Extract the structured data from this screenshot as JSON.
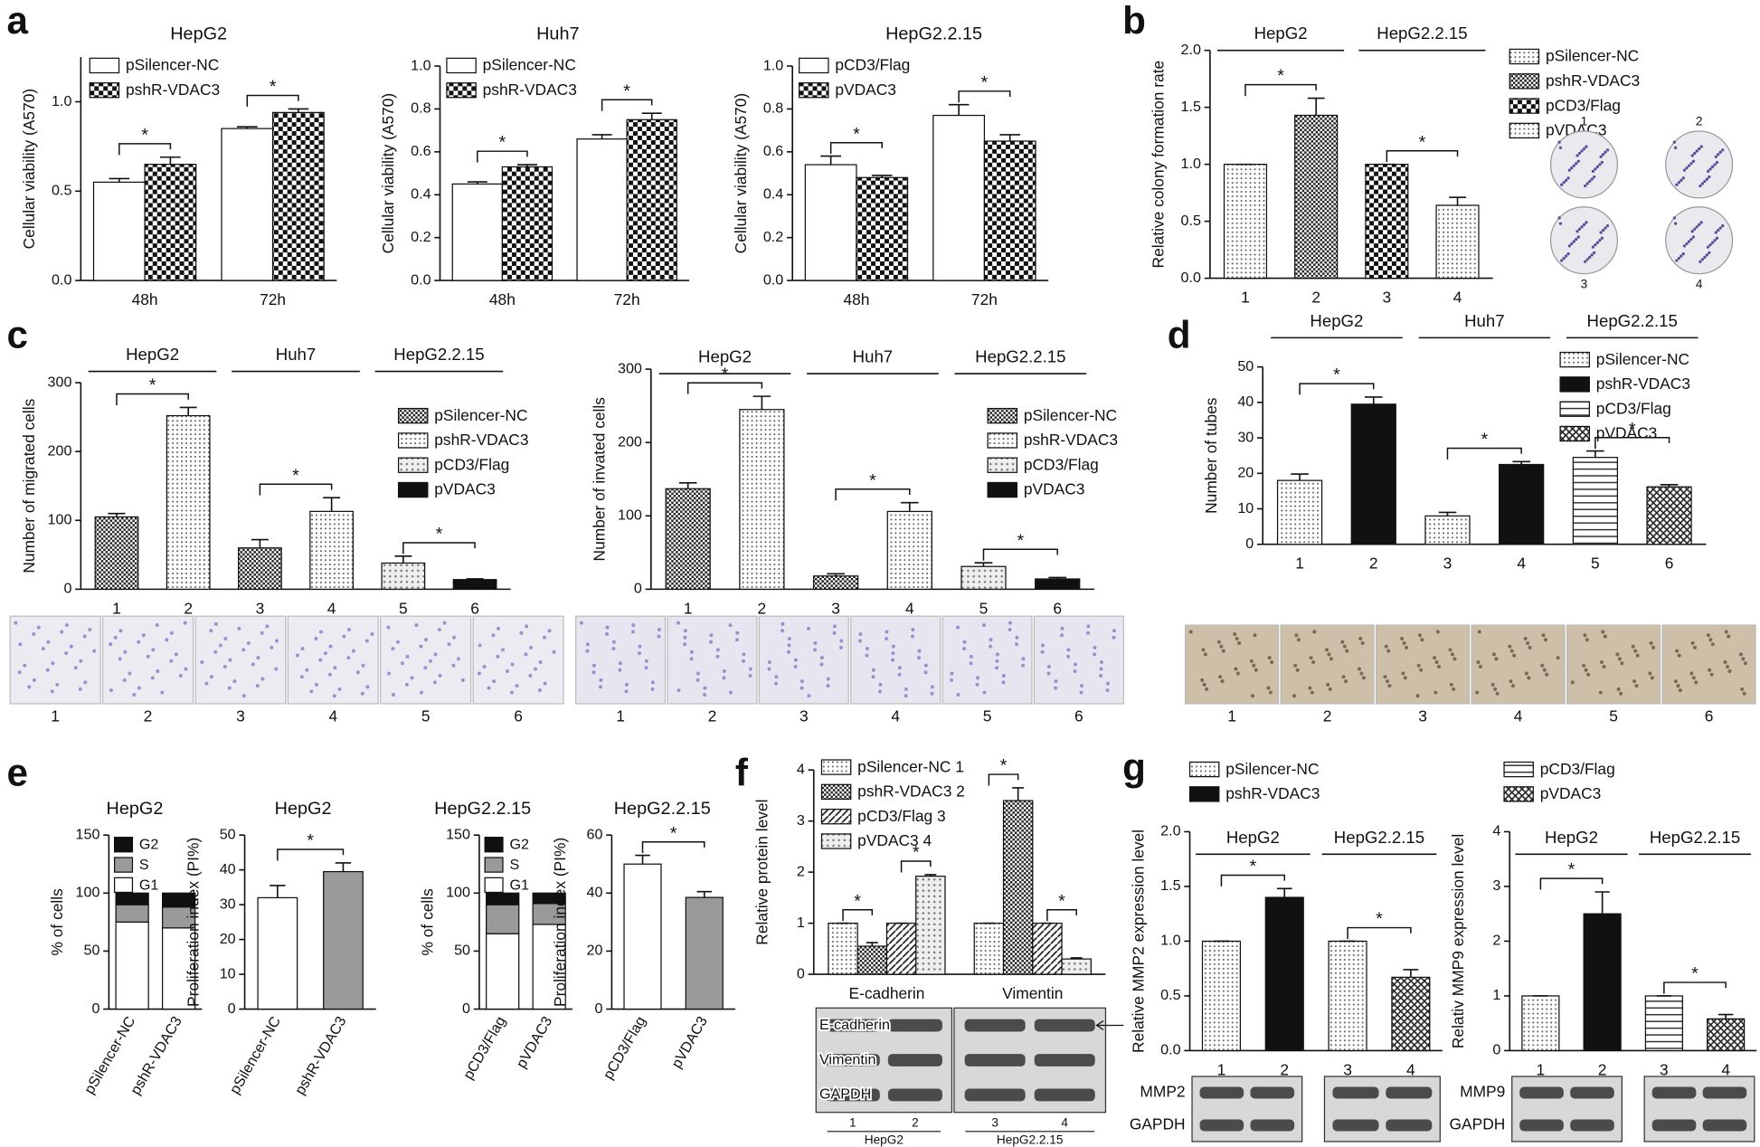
{
  "chart_data": [
    {
      "type": "bar",
      "panel": "a",
      "title": "HepG2",
      "ylabel": "Cellular viability (A570)",
      "categories": [
        "48h",
        "72h"
      ],
      "series": [
        {
          "name": "pSilencer-NC",
          "fill": "white",
          "values": [
            0.55,
            0.85
          ],
          "errors": [
            0.02,
            0.01
          ]
        },
        {
          "name": "pshR-VDAC3",
          "fill": "checker",
          "values": [
            0.65,
            0.94
          ],
          "errors": [
            0.04,
            0.02
          ]
        }
      ],
      "ylim": [
        0,
        1.25
      ],
      "yticks": [
        {
          "value": 0,
          "label": "0.0"
        },
        {
          "value": 0.5,
          "label": "0.5"
        },
        {
          "value": 1,
          "label": "1.0"
        }
      ],
      "annotations": [
        "*",
        "*"
      ]
    },
    {
      "type": "bar",
      "title": "Huh7",
      "ylabel": "Cellular viability (A570)",
      "categories": [
        "48h",
        "72h"
      ],
      "series": [
        {
          "name": "pSilencer-NC",
          "fill": "white",
          "values": [
            0.45,
            0.66
          ],
          "errors": [
            0.01,
            0.02
          ]
        },
        {
          "name": "pshR-VDAC3",
          "fill": "checker",
          "values": [
            0.53,
            0.75
          ],
          "errors": [
            0.01,
            0.03
          ]
        }
      ],
      "ylim": [
        0,
        1.0
      ],
      "yticks": [
        {
          "value": 0,
          "label": "0.0"
        },
        0.2,
        0.4,
        0.6,
        0.8,
        {
          "value": 1,
          "label": "1.0"
        }
      ],
      "annotations": [
        "*",
        "*"
      ]
    },
    {
      "type": "bar",
      "title": "HepG2.2.15",
      "ylabel": "Cellular viability (A570)",
      "categories": [
        "48h",
        "72h"
      ],
      "series": [
        {
          "name": "pCD3/Flag",
          "fill": "white",
          "values": [
            0.54,
            0.77
          ],
          "errors": [
            0.04,
            0.05
          ]
        },
        {
          "name": "pVDAC3",
          "fill": "checker",
          "values": [
            0.48,
            0.65
          ],
          "errors": [
            0.01,
            0.03
          ]
        }
      ],
      "ylim": [
        0,
        1.0
      ],
      "yticks": [
        {
          "value": 0,
          "label": "0.0"
        },
        0.2,
        0.4,
        0.6,
        0.8,
        {
          "value": 1,
          "label": "1.0"
        }
      ],
      "annotations": [
        "*",
        "*"
      ]
    },
    {
      "type": "bar",
      "panel": "b",
      "ylabel": "Relative colony formation rate",
      "categories": [
        "1",
        "2",
        "3",
        "4"
      ],
      "values": [
        1,
        1.43,
        1,
        0.64
      ],
      "errors": [
        0,
        0.15,
        0,
        0.07
      ],
      "fills": [
        "dots",
        "dense",
        "checker",
        "dots"
      ],
      "legend": [
        {
          "name": "pSilencer-NC",
          "fill": "dots"
        },
        {
          "name": "pshR-VDAC3",
          "fill": "dense"
        },
        {
          "name": "pCD3/Flag",
          "fill": "checker"
        },
        {
          "name": "pVDAC3",
          "fill": "dots"
        }
      ],
      "groups": [
        "HepG2",
        "HepG2.2.15"
      ],
      "ylim": [
        0,
        2.0
      ],
      "yticks": [
        {
          "value": 0,
          "label": "0.0"
        },
        0.5,
        {
          "value": 1,
          "label": "1.0"
        },
        1.5,
        {
          "value": 2,
          "label": "2.0"
        }
      ],
      "annotations": [
        "*",
        "*"
      ],
      "image_labels": [
        "1",
        "2",
        "3",
        "4"
      ]
    },
    {
      "type": "bar",
      "panel": "c",
      "ylabel": "Number of migrated cells",
      "categories": [
        "1",
        "2",
        "3",
        "4",
        "5",
        "6"
      ],
      "values": [
        105,
        252,
        60,
        113,
        38,
        14
      ],
      "errors": [
        5,
        12,
        12,
        20,
        10,
        1
      ],
      "fills": [
        "dense",
        "dots",
        "dense",
        "dots",
        "lightdots",
        "black"
      ],
      "legend": [
        {
          "name": "pSilencer-NC",
          "fill": "dense"
        },
        {
          "name": "pshR-VDAC3",
          "fill": "dots"
        },
        {
          "name": "pCD3/Flag",
          "fill": "lightdots"
        },
        {
          "name": "pVDAC3",
          "fill": "black"
        }
      ],
      "groups": [
        "HepG2",
        "Huh7",
        "HepG2.2.15"
      ],
      "ylim": [
        0,
        300
      ],
      "yticks": [
        0,
        100,
        200,
        300
      ],
      "annotations": [
        "*",
        "*",
        "*"
      ],
      "image_labels": [
        "1",
        "2",
        "3",
        "4",
        "5",
        "6"
      ]
    },
    {
      "type": "bar",
      "ylabel": "Number of invated cells",
      "categories": [
        "1",
        "2",
        "3",
        "4",
        "5",
        "6"
      ],
      "values": [
        137,
        245,
        18,
        106,
        31,
        14
      ],
      "errors": [
        8,
        18,
        3,
        12,
        5,
        2
      ],
      "fills": [
        "dense",
        "dots",
        "dense",
        "dots",
        "lightdots",
        "black"
      ],
      "legend": [
        {
          "name": "pSilencer-NC",
          "fill": "dense"
        },
        {
          "name": "pshR-VDAC3",
          "fill": "dots"
        },
        {
          "name": "pCD3/Flag",
          "fill": "lightdots"
        },
        {
          "name": "pVDAC3",
          "fill": "black"
        }
      ],
      "groups": [
        "HepG2",
        "Huh7",
        "HepG2.2.15"
      ],
      "ylim": [
        0,
        300
      ],
      "yticks": [
        0,
        100,
        200,
        300
      ],
      "annotations": [
        "*",
        "*",
        "*"
      ],
      "image_labels": [
        "1",
        "2",
        "3",
        "4",
        "5",
        "6"
      ]
    },
    {
      "type": "bar",
      "panel": "d",
      "ylabel": "Number of tubes",
      "categories": [
        "1",
        "2",
        "3",
        "4",
        "5",
        "6"
      ],
      "values": [
        18,
        39.5,
        8,
        22.5,
        24.5,
        16.2
      ],
      "errors": [
        1.8,
        2,
        1,
        0.8,
        1.8,
        0.6
      ],
      "fills": [
        "dots",
        "black",
        "dots",
        "black",
        "hstripes",
        "crosshatch"
      ],
      "legend": [
        {
          "name": "pSilencer-NC",
          "fill": "dots"
        },
        {
          "name": "pshR-VDAC3",
          "fill": "black"
        },
        {
          "name": "pCD3/Flag",
          "fill": "hstripes"
        },
        {
          "name": "pVDAC3",
          "fill": "crosshatch"
        }
      ],
      "groups": [
        "HepG2",
        "Huh7",
        "HepG2.2.15"
      ],
      "ylim": [
        0,
        50
      ],
      "yticks": [
        0,
        10,
        20,
        30,
        40,
        50
      ],
      "annotations": [
        "*",
        "*",
        "*"
      ],
      "image_labels": [
        "1",
        "2",
        "3",
        "4",
        "5",
        "6"
      ]
    },
    {
      "type": "stacked_bar",
      "panel": "e",
      "title": "HepG2",
      "ylabel": "% of cells",
      "categories": [
        "pSilencer-NC",
        "pshR-VDAC3"
      ],
      "series": [
        {
          "name": "G1",
          "fill": "white",
          "values": [
            75,
            70
          ]
        },
        {
          "name": "S",
          "fill": "gray",
          "values": [
            15,
            18
          ]
        },
        {
          "name": "G2",
          "fill": "black",
          "values": [
            10,
            12
          ]
        }
      ],
      "ylim": [
        0,
        150
      ],
      "yticks": [
        0,
        50,
        100,
        150
      ]
    },
    {
      "type": "bar",
      "title": "HepG2",
      "ylabel": "Proliferation index (PI%)",
      "categories": [
        "pSilencer-NC",
        "pshR-VDAC3"
      ],
      "values": [
        32,
        39.5
      ],
      "errors": [
        3.5,
        2.5
      ],
      "fills": [
        "white",
        "gray"
      ],
      "ylim": [
        0,
        50
      ],
      "yticks": [
        0,
        10,
        20,
        30,
        40,
        50
      ],
      "annotations": [
        "*"
      ]
    },
    {
      "type": "stacked_bar",
      "title": "HepG2.2.15",
      "ylabel": "% of cells",
      "categories": [
        "pCD3/Flag",
        "pVDAC3"
      ],
      "series": [
        {
          "name": "G1",
          "fill": "white",
          "values": [
            65,
            73
          ]
        },
        {
          "name": "S",
          "fill": "gray",
          "values": [
            25,
            18
          ]
        },
        {
          "name": "G2",
          "fill": "black",
          "values": [
            10,
            9
          ]
        }
      ],
      "ylim": [
        0,
        150
      ],
      "yticks": [
        0,
        50,
        100,
        150
      ]
    },
    {
      "type": "bar",
      "title": "HepG2.2.15",
      "ylabel": "Proliferation index (PI%)",
      "categories": [
        "pCD3/Flag",
        "pVDAC3"
      ],
      "values": [
        50,
        38.5
      ],
      "errors": [
        3,
        2
      ],
      "fills": [
        "white",
        "gray"
      ],
      "ylim": [
        0,
        60
      ],
      "yticks": [
        0,
        20,
        40,
        60
      ],
      "annotations": [
        "*"
      ]
    },
    {
      "type": "bar",
      "panel": "f",
      "ylabel": "Relative protein level",
      "categories": [
        "E-cadherin",
        "Vimentin"
      ],
      "series": [
        {
          "name": "pSilencer-NC 1",
          "fill": "dots",
          "values": [
            1,
            1
          ],
          "errors": [
            0,
            0
          ]
        },
        {
          "name": "pshR-VDAC3 2",
          "fill": "dense",
          "values": [
            0.55,
            3.4
          ],
          "errors": [
            0.07,
            0.25
          ]
        },
        {
          "name": "pCD3/Flag   3",
          "fill": "diag",
          "values": [
            1,
            1
          ],
          "errors": [
            0,
            0
          ]
        },
        {
          "name": "pVDAC3       4",
          "fill": "lightdots",
          "values": [
            1.92,
            0.3
          ],
          "errors": [
            0.03,
            0.02
          ]
        }
      ],
      "ylim": [
        0,
        4
      ],
      "yticks": [
        0,
        1,
        2,
        3,
        4
      ],
      "annotations": [
        "*",
        "*",
        "*",
        "*"
      ],
      "blot": {
        "rows": [
          "E-cadherin",
          "Vimentin",
          "GAPDH"
        ],
        "lanes": [
          "1",
          "2",
          "3",
          "4"
        ],
        "groups": [
          "HepG2",
          "HepG2.2.15"
        ]
      }
    },
    {
      "type": "bar",
      "panel": "g",
      "ylabel": "Relative MMP2 expression level",
      "categories": [
        "1",
        "2",
        "3",
        "4"
      ],
      "values": [
        1,
        1.4,
        1,
        0.67
      ],
      "errors": [
        0,
        0.08,
        0,
        0.07
      ],
      "fills": [
        "dots",
        "black",
        "dots",
        "crosshatch"
      ],
      "legend": [
        {
          "name": "pSilencer-NC",
          "fill": "dots"
        },
        {
          "name": "pshR-VDAC3",
          "fill": "black"
        }
      ],
      "groups": [
        "HepG2",
        "HepG2.2.15"
      ],
      "ylim": [
        0,
        2.0
      ],
      "yticks": [
        {
          "value": 0,
          "label": "0.0"
        },
        0.5,
        {
          "value": 1,
          "label": "1.0"
        },
        1.5,
        {
          "value": 2,
          "label": "2.0"
        }
      ],
      "annotations": [
        "*",
        "*"
      ],
      "blot": {
        "rows": [
          "MMP2",
          "GAPDH"
        ]
      }
    },
    {
      "type": "bar",
      "ylabel": "Relativ MMP9 expression level",
      "categories": [
        "1",
        "2",
        "3",
        "4"
      ],
      "values": [
        1,
        2.5,
        1,
        0.58
      ],
      "errors": [
        0,
        0.4,
        0,
        0.08
      ],
      "fills": [
        "dots",
        "black",
        "hstripes",
        "crosshatch"
      ],
      "legend": [
        {
          "name": "pCD3/Flag",
          "fill": "hstripes"
        },
        {
          "name": "pVDAC3",
          "fill": "crosshatch"
        }
      ],
      "groups": [
        "HepG2",
        "HepG2.2.15"
      ],
      "ylim": [
        0,
        4
      ],
      "yticks": [
        0,
        1,
        2,
        3,
        4
      ],
      "annotations": [
        "*",
        "*"
      ],
      "blot": {
        "rows": [
          "MMP9",
          "GAPDH"
        ]
      }
    }
  ]
}
